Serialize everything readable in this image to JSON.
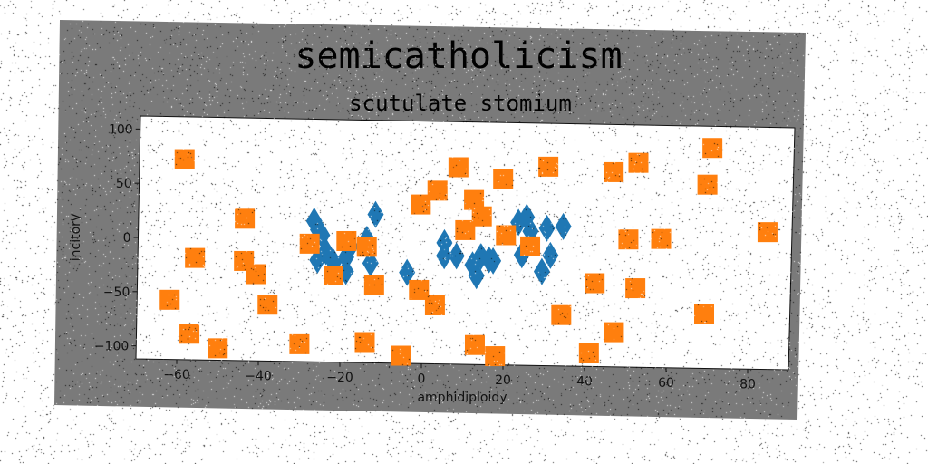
{
  "chart_data": {
    "type": "scatter",
    "title": "semicatholicism",
    "subtitle": "scutulate stomium",
    "xlabel": "amphidiploidy",
    "ylabel": "incitory",
    "xlim": [
      -70,
      90
    ],
    "ylim": [
      -112,
      112
    ],
    "xticks": [
      -60,
      -40,
      -20,
      0,
      20,
      40,
      60,
      80
    ],
    "yticks": [
      100,
      50,
      0,
      -50,
      -100
    ],
    "grid": false,
    "series": [
      {
        "marker": "diamond",
        "color": "#1f77b4",
        "points": [
          [
            -27,
            18
          ],
          [
            -26,
            10
          ],
          [
            -25,
            5
          ],
          [
            -26,
            -18
          ],
          [
            -24,
            -10
          ],
          [
            -22,
            -20
          ],
          [
            -19,
            -28
          ],
          [
            -19,
            -15
          ],
          [
            -18,
            -5
          ],
          [
            -14,
            2
          ],
          [
            -13,
            -20
          ],
          [
            -12,
            25
          ],
          [
            -4,
            -28
          ],
          [
            5,
            0
          ],
          [
            5,
            -12
          ],
          [
            8,
            -12
          ],
          [
            12,
            -20
          ],
          [
            13,
            -30
          ],
          [
            14,
            -12
          ],
          [
            16,
            -15
          ],
          [
            17,
            -16
          ],
          [
            23,
            20
          ],
          [
            24,
            -10
          ],
          [
            25,
            25
          ],
          [
            26,
            12
          ],
          [
            29,
            -25
          ],
          [
            30,
            15
          ],
          [
            31,
            -10
          ],
          [
            34,
            17
          ]
        ]
      },
      {
        "marker": "square",
        "color": "#ff7f0e",
        "points": [
          [
            -59,
            73
          ],
          [
            -62,
            -57
          ],
          [
            -56,
            -18
          ],
          [
            -57,
            -88
          ],
          [
            -50,
            -101
          ],
          [
            -44,
            19
          ],
          [
            -44,
            -20
          ],
          [
            -41,
            -32
          ],
          [
            -38,
            -60
          ],
          [
            -30,
            -96
          ],
          [
            -28,
            -3
          ],
          [
            -22,
            -32
          ],
          [
            -19,
            0
          ],
          [
            -14,
            -93
          ],
          [
            -14,
            -5
          ],
          [
            -12,
            -40
          ],
          [
            -5,
            -105
          ],
          [
            -1,
            35
          ],
          [
            -1,
            -44
          ],
          [
            3,
            48
          ],
          [
            3,
            -58
          ],
          [
            8,
            70
          ],
          [
            10,
            12
          ],
          [
            12,
            40
          ],
          [
            14,
            25
          ],
          [
            13,
            -94
          ],
          [
            18,
            -104
          ],
          [
            19,
            60
          ],
          [
            20,
            8
          ],
          [
            26,
            -2
          ],
          [
            30,
            72
          ],
          [
            34,
            -65
          ],
          [
            41,
            -100
          ],
          [
            42,
            -35
          ],
          [
            46,
            68
          ],
          [
            47,
            -80
          ],
          [
            50,
            6
          ],
          [
            52,
            77
          ],
          [
            52,
            -39
          ],
          [
            58,
            7
          ],
          [
            69,
            58
          ],
          [
            69,
            -62
          ],
          [
            70,
            92
          ],
          [
            84,
            15
          ]
        ]
      }
    ]
  }
}
